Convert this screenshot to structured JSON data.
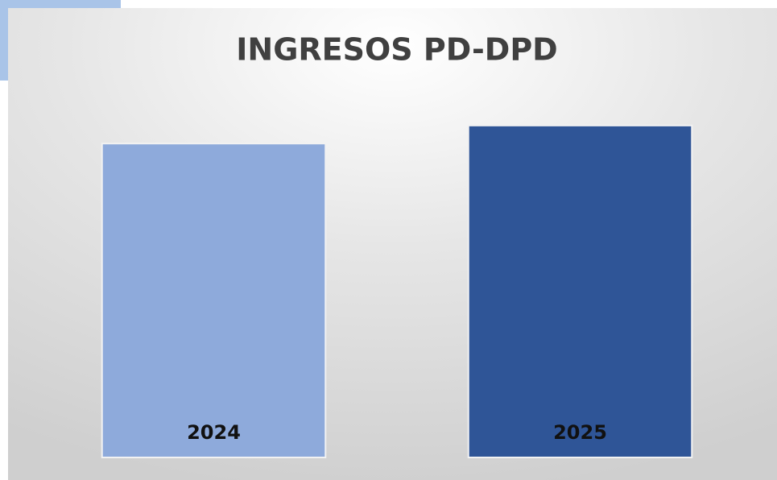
{
  "chart_data": {
    "type": "bar",
    "title": "INGRESOS PD-DPD",
    "categories": [
      "2024",
      "2025"
    ],
    "values": [
      87,
      92
    ],
    "colors": [
      "#8eaadb",
      "#2f5597"
    ],
    "ylim": [
      0,
      100
    ]
  }
}
